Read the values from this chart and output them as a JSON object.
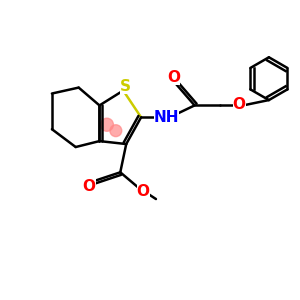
{
  "background_color": "#ffffff",
  "bond_color": "#000000",
  "S_color": "#cccc00",
  "N_color": "#0000ff",
  "O_color": "#ff0000",
  "lw": 1.8,
  "figsize": [
    3.0,
    3.0
  ],
  "dpi": 100,
  "xlim": [
    0,
    10
  ],
  "ylim": [
    0,
    10
  ],
  "highlight_color": "#ff8888",
  "highlight_alpha": 0.7
}
